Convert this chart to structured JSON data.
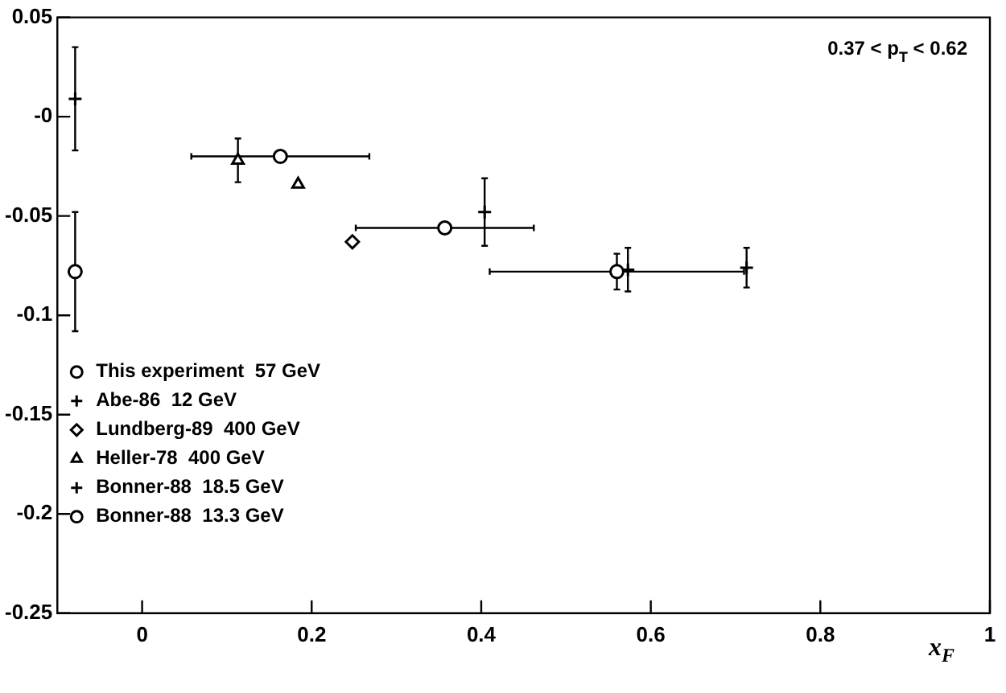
{
  "chart_data": {
    "type": "scatter",
    "xlabel": "x$_{F}$",
    "annotations": [
      "0.37 < p$_{T}$ < 0.62"
    ],
    "xlim": [
      -0.1,
      1.0
    ],
    "xticks": [
      0,
      0.2,
      0.4,
      0.6,
      0.8,
      1
    ],
    "ylim": [
      -0.25,
      0.05
    ],
    "yticks": [
      -0.25,
      -0.2,
      -0.15,
      -0.1,
      -0.05,
      {
        "value": 0,
        "label": "-0"
      },
      0.05
    ],
    "grid": false,
    "legend": "bottom left",
    "series": [
      {
        "name": "This experiment  57 GeV",
        "color": "#000000",
        "marker": "circle",
        "x": [
          0.163,
          0.357,
          0.56
        ],
        "values": [
          -0.02,
          -0.056,
          -0.078
        ],
        "errors": [
          0.003,
          0.003,
          0.009
        ],
        "xerrors": [
          0.105,
          0.105,
          0.15
        ]
      },
      {
        "name": "Abe-86  12 GeV",
        "color": "#000000",
        "marker": "cross",
        "x": [
          0.404,
          0.573,
          0.713
        ],
        "values": [
          -0.048,
          -0.077,
          -0.076
        ],
        "errors": [
          0.017,
          0.011,
          0.01
        ]
      },
      {
        "name": "Lundberg-89  400 GeV",
        "color": "#000000",
        "marker": "diamond",
        "x": [
          0.248
        ],
        "values": [
          -0.063
        ]
      },
      {
        "name": "Heller-78  400 GeV",
        "color": "#000000",
        "marker": "triangle",
        "x": [
          0.113,
          0.184
        ],
        "values": [
          -0.022,
          -0.034
        ],
        "errors": [
          0.011,
          null
        ]
      },
      {
        "name": "Bonner-88  18.5 GeV",
        "color": "#000000",
        "marker": "cross",
        "x": [
          -0.079
        ],
        "values": [
          0.009
        ],
        "errors": [
          0.026
        ]
      },
      {
        "name": "Bonner-88  13.3 GeV",
        "color": "#000000",
        "marker": "circle",
        "x": [
          -0.079
        ],
        "values": [
          -0.078
        ],
        "errors": [
          0.03
        ]
      }
    ]
  }
}
